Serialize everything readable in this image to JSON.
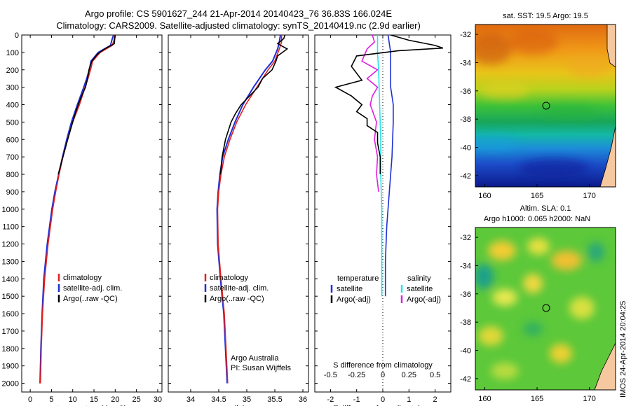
{
  "header": {
    "line1": "Argo profile: CS 5901627_244 21-Apr-2014 20140423_76 36.83S 166.024E",
    "line2": "Climatology: CARS2009. Satellite-adjusted climatology: synTS_20140419.nc (2.9d earlier)"
  },
  "depth_ticks": [
    "0",
    "100",
    "200",
    "300",
    "400",
    "500",
    "600",
    "700",
    "800",
    "900",
    "1000",
    "1100",
    "1200",
    "1300",
    "1400",
    "1500",
    "1600",
    "1700",
    "1800",
    "1900",
    "2000"
  ],
  "colors": {
    "climatology": "#e02020",
    "satellite": "#1f2fd6",
    "argo": "#000000",
    "sat_sal": "#22e6e6",
    "argo_sal": "#e020e0"
  },
  "chart_data": [
    {
      "type": "line",
      "panel": "temperature",
      "xlabel": "temperature (deg C)",
      "xlim": [
        -2,
        31
      ],
      "ylim": [
        0,
        2050
      ],
      "x_ticks": [
        "0",
        "5",
        "10",
        "15",
        "20",
        "25",
        "30"
      ],
      "legend": [
        "climatology",
        "satellite-adj. clim.",
        "Argo(..raw -QC)"
      ],
      "series": [
        {
          "name": "climatology",
          "depth": [
            0,
            30,
            60,
            100,
            150,
            200,
            250,
            300,
            400,
            500,
            600,
            700,
            800,
            900,
            1000,
            1200,
            1400,
            1600,
            1800,
            2000
          ],
          "values": [
            19.9,
            19.7,
            19.3,
            16.5,
            14.7,
            14.2,
            13.6,
            12.9,
            11.6,
            10.0,
            8.8,
            7.7,
            6.8,
            6.0,
            5.3,
            4.2,
            3.4,
            2.9,
            2.6,
            2.4
          ]
        },
        {
          "name": "satellite-adj. clim.",
          "depth": [
            0,
            30,
            60,
            100,
            150,
            200,
            250,
            300,
            400,
            500,
            600,
            700,
            800,
            900,
            1000,
            1200,
            1400,
            1600,
            1800,
            2000
          ],
          "values": [
            19.6,
            19.2,
            18.9,
            16.0,
            14.3,
            13.9,
            13.3,
            12.6,
            11.1,
            9.7,
            8.6,
            7.6,
            6.7,
            5.8,
            5.1,
            4.0,
            3.2,
            2.8,
            2.5,
            2.3
          ]
        },
        {
          "name": "Argo(..raw -QC)",
          "depth": [
            0,
            20,
            50,
            80,
            110,
            150,
            200,
            250,
            300,
            350,
            400,
            450,
            500,
            550,
            600,
            700,
            800
          ],
          "values": [
            20.0,
            19.9,
            19.8,
            17.5,
            15.8,
            14.5,
            13.8,
            13.5,
            13.0,
            12.1,
            11.3,
            10.6,
            10.0,
            9.4,
            8.8,
            7.7,
            6.6
          ]
        }
      ]
    },
    {
      "type": "line",
      "panel": "salinity",
      "xlabel": "salinity",
      "xlim": [
        33.6,
        36.1
      ],
      "ylim": [
        0,
        2050
      ],
      "x_ticks": [
        "34",
        "34.5",
        "35",
        "35.5",
        "36"
      ],
      "legend": [
        "climatology",
        "satellite-adj. clim.",
        "Argo(..raw -QC)"
      ],
      "annotation": [
        "Argo Australia",
        "PI: Susan Wijffels"
      ],
      "series": [
        {
          "name": "climatology",
          "depth": [
            0,
            40,
            80,
            150,
            200,
            300,
            400,
            500,
            600,
            700,
            800,
            900,
            1000,
            1200,
            1400,
            1600,
            1800,
            2000
          ],
          "values": [
            35.62,
            35.62,
            35.58,
            35.5,
            35.38,
            35.18,
            34.98,
            34.82,
            34.7,
            34.6,
            34.54,
            34.5,
            34.48,
            34.49,
            34.54,
            34.6,
            34.63,
            34.66
          ]
        },
        {
          "name": "satellite-adj. clim.",
          "depth": [
            0,
            40,
            80,
            150,
            200,
            300,
            400,
            500,
            600,
            700,
            800,
            900,
            1000,
            1200,
            1400,
            1600,
            1800,
            2000
          ],
          "values": [
            35.6,
            35.58,
            35.55,
            35.46,
            35.33,
            35.12,
            34.93,
            34.79,
            34.67,
            34.57,
            34.52,
            34.49,
            34.47,
            34.48,
            34.53,
            34.59,
            34.62,
            34.65
          ]
        },
        {
          "name": "Argo(..raw -QC)",
          "depth": [
            0,
            20,
            50,
            80,
            120,
            150,
            200,
            250,
            300,
            350,
            400,
            450,
            500,
            600,
            700,
            800
          ],
          "values": [
            35.68,
            35.66,
            35.55,
            35.72,
            35.55,
            35.52,
            35.45,
            35.28,
            35.2,
            35.05,
            34.9,
            34.8,
            34.72,
            34.62,
            34.56,
            34.53
          ]
        }
      ]
    },
    {
      "type": "line",
      "panel": "difference",
      "xlabel": "T difference from climatology",
      "xlabel2": "S difference from climatology",
      "xlim": [
        -2.6,
        2.6
      ],
      "ylim": [
        0,
        2050
      ],
      "x_ticks": [
        "-2",
        "-1",
        "0",
        "1",
        "2"
      ],
      "x2_ticks": [
        "-0.5",
        "-0.25",
        "0",
        "0.25",
        "0.5"
      ],
      "legend_headers": [
        "temperature",
        "salinity"
      ],
      "legend": [
        "satellite",
        "Argo(-adj)",
        "satellite",
        "Argo(-adj)"
      ],
      "series": [
        {
          "name": "satellite",
          "depth": [
            0,
            100,
            200,
            300,
            400,
            500,
            700,
            900,
            1100,
            1300,
            1500
          ],
          "values": [
            0.2,
            0.3,
            0.3,
            0.3,
            0.4,
            0.4,
            0.35,
            0.25,
            0.15,
            0.1,
            0.1
          ]
        },
        {
          "name": "Argo(-adj)",
          "depth": [
            0,
            30,
            60,
            75,
            90,
            120,
            180,
            220,
            260,
            300,
            350,
            400,
            440,
            480,
            520,
            560,
            620,
            700,
            800
          ],
          "values": [
            0.3,
            1.0,
            2.0,
            2.3,
            0.6,
            -1.0,
            -1.2,
            -1.0,
            -0.8,
            -1.8,
            -1.2,
            -0.8,
            -1.0,
            -0.6,
            -0.6,
            -0.2,
            -0.2,
            -0.1,
            -0.1
          ]
        },
        {
          "name": "satellite",
          "depth": [
            0,
            100,
            200,
            400,
            600,
            800,
            1000,
            1200,
            1400,
            1500
          ],
          "values": [
            -0.05,
            -0.05,
            -0.04,
            -0.03,
            -0.02,
            -0.02,
            -0.01,
            -0.01,
            -0.01,
            -0.01
          ]
        },
        {
          "name": "Argo(-adj)",
          "depth": [
            0,
            40,
            80,
            150,
            200,
            250,
            300,
            350,
            400,
            500,
            600,
            700,
            800,
            900
          ],
          "values": [
            -0.1,
            -0.08,
            -0.15,
            -0.2,
            -0.05,
            -0.15,
            -0.05,
            -0.1,
            -0.12,
            -0.06,
            -0.08,
            -0.05,
            -0.06,
            -0.04
          ]
        }
      ]
    },
    {
      "type": "heatmap",
      "panel": "sst-map",
      "title": "sat. SST: 19.5 Argo: 19.5",
      "x_ticks": [
        "160",
        "165",
        "170"
      ],
      "y_ticks": [
        "-32",
        "-34",
        "-36",
        "-38",
        "-40",
        "-42"
      ]
    },
    {
      "type": "heatmap",
      "panel": "sla-map",
      "title": "Altim. SLA: 0.1",
      "subtitle": "Argo h1000: 0.065 h2000: NaN",
      "x_ticks": [
        "160",
        "165",
        "170"
      ],
      "y_ticks": [
        "-32",
        "-34",
        "-36",
        "-38",
        "-40",
        "-42"
      ]
    }
  ],
  "stamp": "IMOS 24-Apr-2014 20:04:25"
}
